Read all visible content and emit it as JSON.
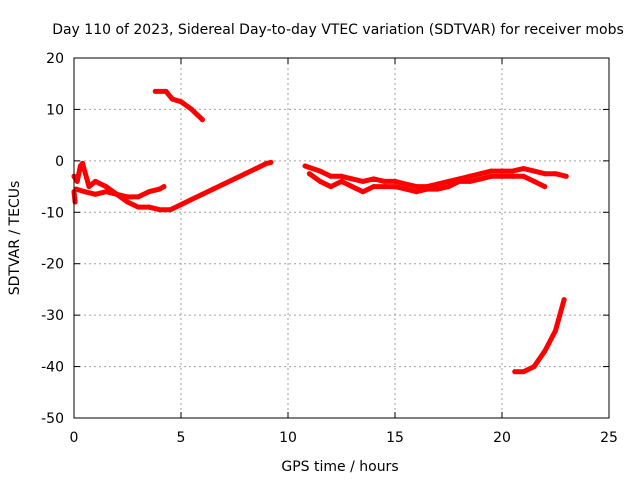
{
  "chart_data": {
    "type": "scatter",
    "title": "Day 110 of 2023, Sidereal Day-to-day VTEC variation (SDTVAR) for receiver mobs",
    "xlabel": "GPS time / hours",
    "ylabel": "SDTVAR / TECUs",
    "xlim": [
      0,
      25
    ],
    "ylim": [
      -50,
      20
    ],
    "xticks": [
      0,
      5,
      10,
      15,
      20,
      25
    ],
    "yticks": [
      -50,
      -40,
      -30,
      -20,
      -10,
      0,
      10,
      20
    ],
    "grid": true,
    "legend": "none",
    "color": "#ff0000",
    "series": [
      {
        "name": "segment-1",
        "points": [
          [
            0.0,
            -3
          ],
          [
            0.15,
            -4
          ],
          [
            0.3,
            -1
          ],
          [
            0.4,
            -0.5
          ],
          [
            0.5,
            -2
          ],
          [
            0.7,
            -5
          ],
          [
            1.0,
            -4
          ],
          [
            1.5,
            -5
          ],
          [
            2.0,
            -6.5
          ],
          [
            2.5,
            -8
          ],
          [
            3.0,
            -9
          ],
          [
            3.5,
            -9
          ],
          [
            4.0,
            -9.5
          ],
          [
            4.5,
            -9.5
          ],
          [
            5.0,
            -8.5
          ],
          [
            5.5,
            -7.5
          ],
          [
            6.0,
            -6.5
          ],
          [
            6.5,
            -5.5
          ],
          [
            7.0,
            -4.5
          ],
          [
            7.5,
            -3.5
          ],
          [
            8.0,
            -2.5
          ],
          [
            8.5,
            -1.5
          ],
          [
            9.0,
            -0.5
          ],
          [
            9.2,
            -0.3
          ]
        ]
      },
      {
        "name": "segment-1-branch",
        "points": [
          [
            0.1,
            -5.5
          ],
          [
            0.5,
            -6
          ],
          [
            1.0,
            -6.5
          ],
          [
            1.5,
            -6
          ],
          [
            2.0,
            -6.5
          ],
          [
            2.5,
            -7
          ],
          [
            3.0,
            -7
          ],
          [
            3.5,
            -6
          ],
          [
            4.0,
            -5.5
          ],
          [
            4.2,
            -5
          ]
        ]
      },
      {
        "name": "segment-1-spike",
        "points": [
          [
            0.0,
            -6
          ],
          [
            0.05,
            -8
          ]
        ]
      },
      {
        "name": "segment-2",
        "points": [
          [
            3.8,
            13.5
          ],
          [
            4.3,
            13.5
          ],
          [
            4.6,
            12
          ],
          [
            5.0,
            11.5
          ],
          [
            5.5,
            10
          ],
          [
            6.0,
            8
          ]
        ]
      },
      {
        "name": "segment-3",
        "points": [
          [
            10.8,
            -1
          ],
          [
            11.5,
            -2
          ],
          [
            12.0,
            -3
          ],
          [
            12.5,
            -3
          ],
          [
            13.0,
            -3.5
          ],
          [
            13.5,
            -4
          ],
          [
            14.0,
            -3.5
          ],
          [
            14.5,
            -4
          ],
          [
            15.0,
            -4
          ],
          [
            15.5,
            -4.5
          ],
          [
            16.0,
            -5
          ],
          [
            16.5,
            -5
          ],
          [
            17.0,
            -4.5
          ],
          [
            17.5,
            -4
          ],
          [
            18.0,
            -3.5
          ],
          [
            18.5,
            -3
          ],
          [
            19.0,
            -2.5
          ],
          [
            19.5,
            -2
          ],
          [
            20.0,
            -2
          ],
          [
            20.5,
            -2
          ],
          [
            21.0,
            -1.5
          ],
          [
            21.5,
            -2
          ],
          [
            22.0,
            -2.5
          ],
          [
            22.5,
            -2.5
          ],
          [
            23.0,
            -3
          ]
        ]
      },
      {
        "name": "segment-3-branch",
        "points": [
          [
            11.0,
            -2.5
          ],
          [
            11.5,
            -4
          ],
          [
            12.0,
            -5
          ],
          [
            12.5,
            -4
          ],
          [
            13.0,
            -5
          ],
          [
            13.5,
            -6
          ],
          [
            14.0,
            -5
          ],
          [
            14.5,
            -5
          ],
          [
            15.0,
            -5
          ],
          [
            15.5,
            -5.5
          ],
          [
            16.0,
            -6
          ],
          [
            16.5,
            -5.5
          ],
          [
            17.0,
            -5.5
          ],
          [
            17.5,
            -5
          ],
          [
            18.0,
            -4
          ],
          [
            18.5,
            -4
          ],
          [
            19.0,
            -3.5
          ],
          [
            19.5,
            -3
          ],
          [
            20.0,
            -3
          ],
          [
            20.5,
            -3
          ],
          [
            21.0,
            -3
          ],
          [
            21.5,
            -4
          ],
          [
            22.0,
            -5
          ]
        ]
      },
      {
        "name": "segment-4",
        "points": [
          [
            20.6,
            -41
          ],
          [
            21.0,
            -41
          ],
          [
            21.5,
            -40
          ],
          [
            22.0,
            -37
          ],
          [
            22.5,
            -33
          ],
          [
            22.9,
            -27
          ]
        ]
      }
    ]
  }
}
